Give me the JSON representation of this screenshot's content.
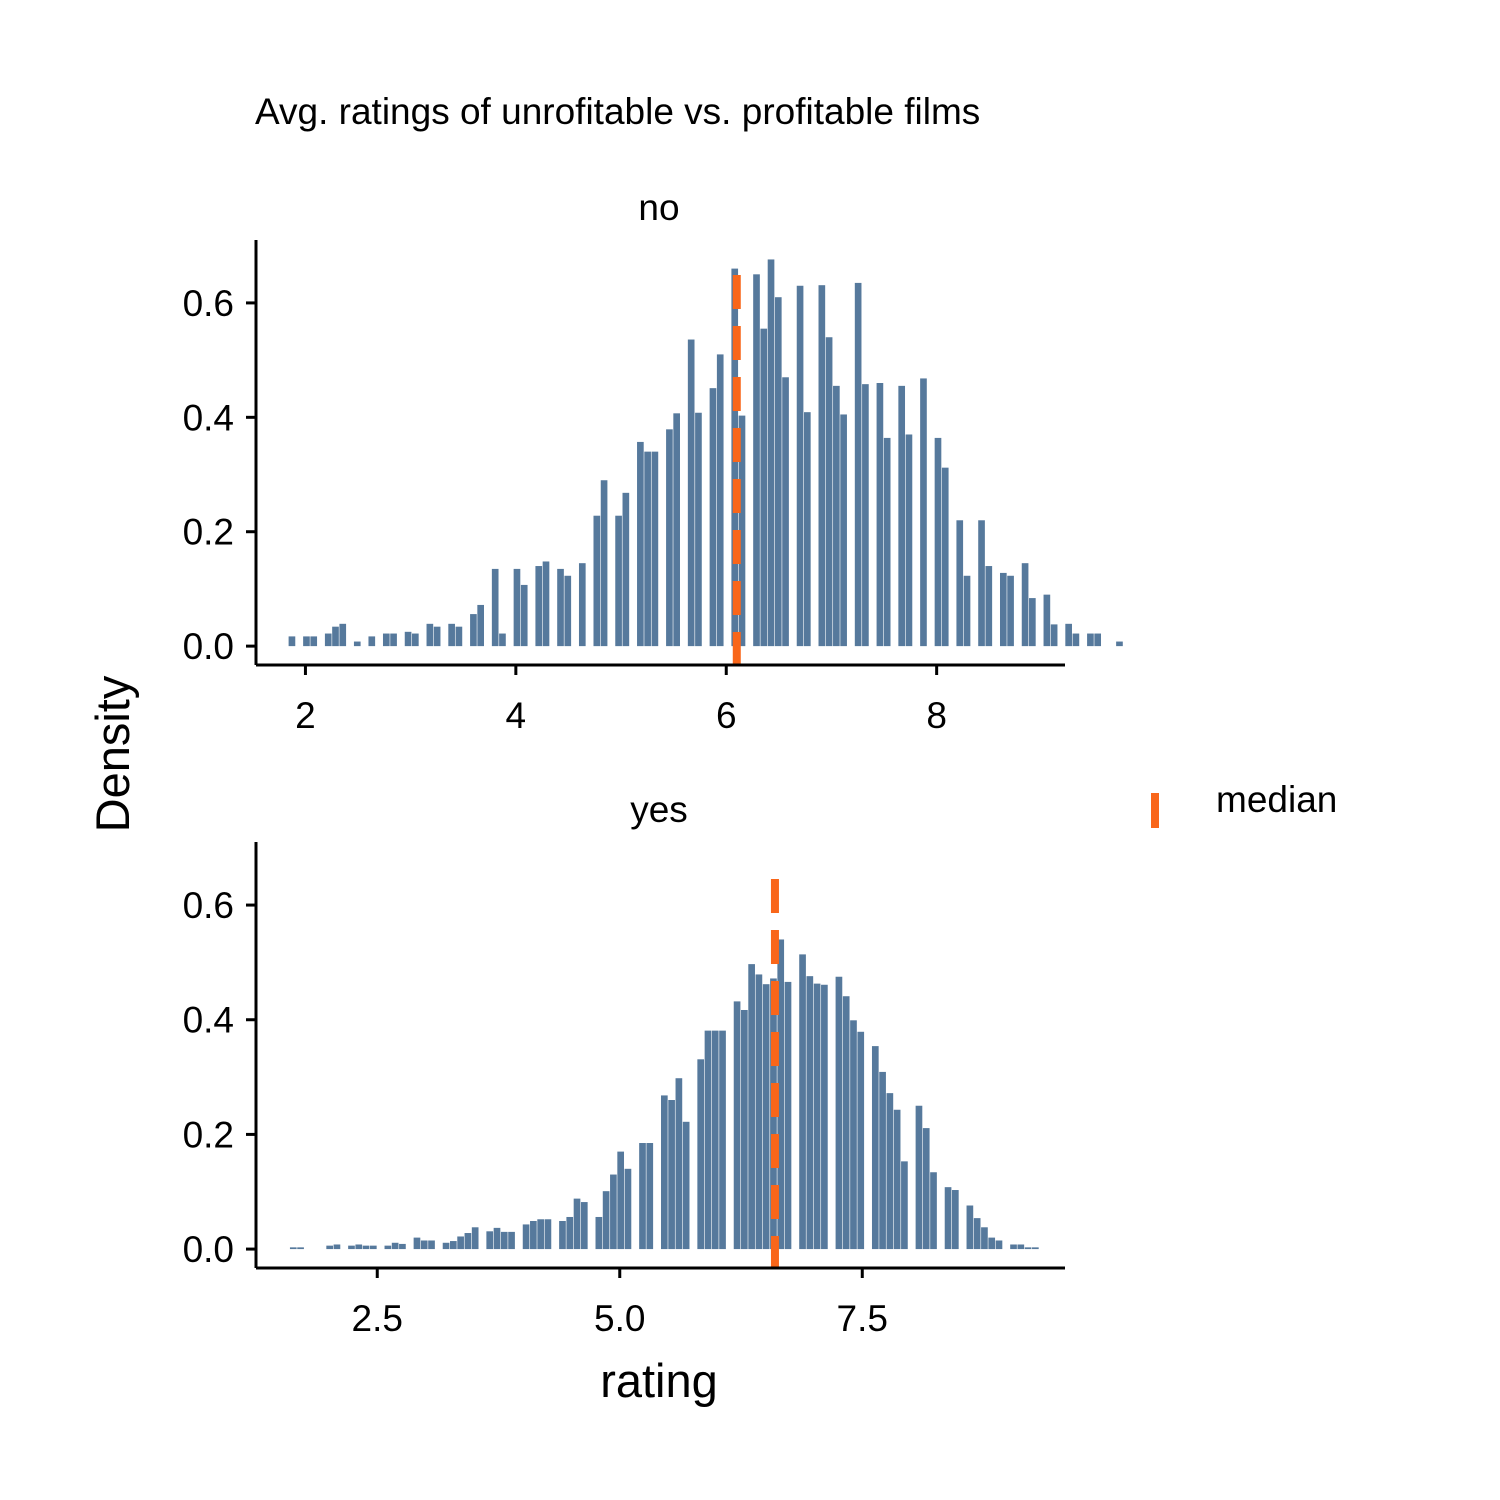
{
  "colors": {
    "bars": "#56799c",
    "median": "#f9661a"
  },
  "chart_data": {
    "type": "bar",
    "title": "Avg. ratings of unrofitable vs. profitable films",
    "xlabel": "rating",
    "ylabel": "Density",
    "legend": {
      "label": "median",
      "placement": "right"
    },
    "panels": [
      {
        "label": "no",
        "xlim": [
          1.53,
          9.22
        ],
        "ylim": [
          -0.033,
          0.71
        ],
        "xticks": [
          2,
          4,
          6,
          8
        ],
        "xtick_labels": [
          "2",
          "4",
          "6",
          "8"
        ],
        "yticks": [
          0.0,
          0.2,
          0.4,
          0.6
        ],
        "ytick_labels": [
          "0.0",
          "0.2",
          "0.4",
          "0.6"
        ],
        "median": 6.1,
        "bin_width": 0.069,
        "bins_start": 1.84,
        "values": [
          0.017,
          0,
          0.017,
          0.017,
          0,
          0.022,
          0.034,
          0.039,
          0,
          0.008,
          0,
          0.017,
          0,
          0.022,
          0.022,
          0,
          0.025,
          0.022,
          0,
          0.039,
          0.034,
          0,
          0.039,
          0.034,
          0,
          0.056,
          0.072,
          0,
          0.135,
          0.022,
          0,
          0.135,
          0.107,
          0,
          0.14,
          0.148,
          0,
          0.135,
          0.123,
          0,
          0.145,
          0,
          0.228,
          0.29,
          0,
          0.228,
          0.268,
          0,
          0.357,
          0.34,
          0.34,
          0,
          0.379,
          0.407,
          0,
          0.536,
          0.408,
          0,
          0.451,
          0.51,
          0,
          0.66,
          0.403,
          0,
          0.65,
          0.555,
          0.676,
          0.61,
          0.47,
          0,
          0.63,
          0.409,
          0,
          0.631,
          0.54,
          0.455,
          0.405,
          0,
          0.635,
          0.458,
          0,
          0.46,
          0.364,
          0,
          0.455,
          0.37,
          0,
          0.468,
          0,
          0.364,
          0.312,
          0,
          0.22,
          0.123,
          0,
          0.22,
          0.14,
          0,
          0.128,
          0.123,
          0,
          0.145,
          0.084,
          0,
          0.09,
          0.038,
          0,
          0.039,
          0.022,
          0,
          0.022,
          0.022,
          0,
          0,
          0.008,
          0,
          0
        ],
        "raw_values": []
      },
      {
        "label": "yes",
        "xlim": [
          1.25,
          9.59
        ],
        "ylim": [
          -0.033,
          0.71
        ],
        "xticks": [
          2.5,
          5.0,
          7.5
        ],
        "xtick_labels": [
          "2.5",
          "5.0",
          "7.5"
        ],
        "yticks": [
          0.0,
          0.2,
          0.4,
          0.6
        ],
        "ytick_labels": [
          "0.0",
          "0.2",
          "0.4",
          "0.6"
        ],
        "median": 6.6,
        "bin_width": 0.075,
        "bins_start": 1.6,
        "values": [
          0.003,
          0.003,
          0,
          0,
          0,
          0.006,
          0.008,
          0,
          0.006,
          0.008,
          0.006,
          0.006,
          0,
          0.006,
          0.011,
          0.009,
          0,
          0.02,
          0.015,
          0.015,
          0,
          0.011,
          0.014,
          0.022,
          0.028,
          0.038,
          0,
          0.031,
          0.037,
          0.03,
          0.03,
          0,
          0.043,
          0.049,
          0.052,
          0.052,
          0,
          0.049,
          0.056,
          0.088,
          0.082,
          0,
          0.056,
          0.101,
          0.13,
          0.17,
          0.14,
          0,
          0.185,
          0.185,
          0,
          0.268,
          0.26,
          0.298,
          0.222,
          0,
          0.331,
          0.381,
          0.381,
          0.381,
          0,
          0.432,
          0.417,
          0.497,
          0.479,
          0.462,
          0.472,
          0.54,
          0.466,
          0,
          0.514,
          0.476,
          0.463,
          0.461,
          0,
          0.475,
          0.441,
          0.399,
          0.379,
          0,
          0.354,
          0.309,
          0.272,
          0.243,
          0.153,
          0,
          0.25,
          0.211,
          0.134,
          0,
          0.108,
          0.103,
          0,
          0.076,
          0.054,
          0.038,
          0.02,
          0.015,
          0,
          0.008,
          0.008,
          0.003,
          0.003,
          0
        ],
        "raw_values": []
      }
    ]
  }
}
